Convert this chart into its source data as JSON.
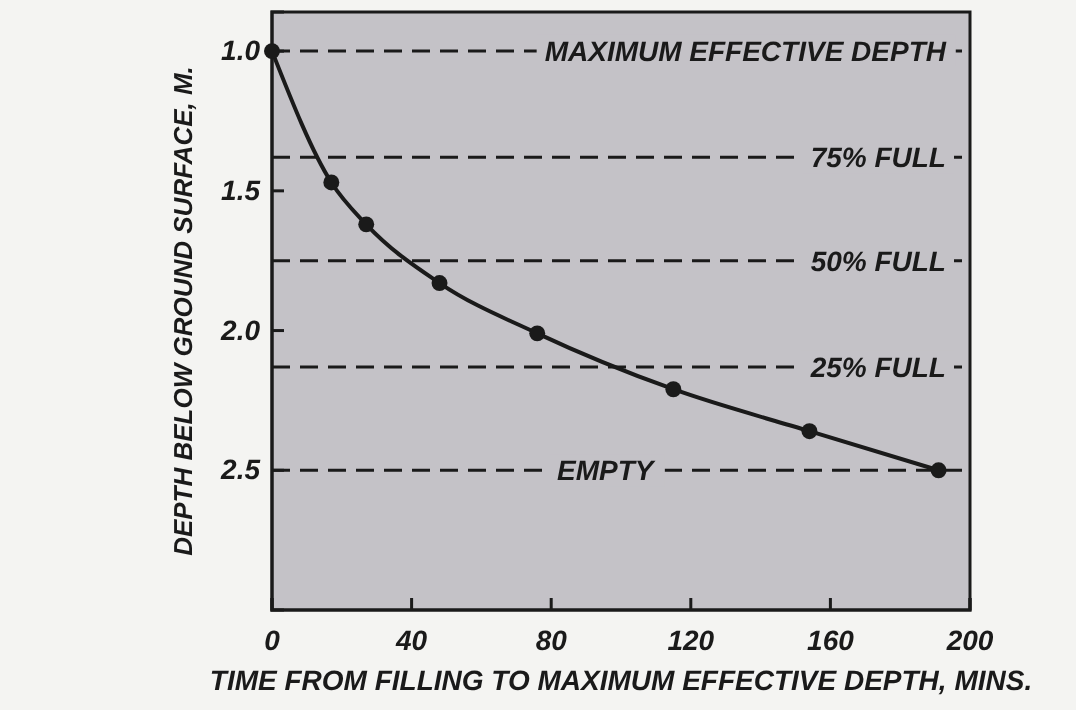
{
  "chart_data": {
    "type": "line",
    "xlabel": "TIME FROM FILLING TO MAXIMUM EFFECTIVE  DEPTH, MINS.",
    "ylabel": "DEPTH BELOW GROUND SURFACE, M.",
    "x": [
      0,
      17,
      27,
      48,
      76,
      115,
      154,
      191
    ],
    "series": [
      {
        "color": "#1a1a1a",
        "values": [
          1.0,
          1.47,
          1.62,
          1.83,
          2.01,
          2.21,
          2.36,
          2.5
        ]
      }
    ],
    "marker": "circle",
    "line_style": "solid",
    "xlim": [
      0,
      200
    ],
    "xticks": [
      0,
      40,
      80,
      120,
      160,
      200
    ],
    "ylim": [
      3.0,
      0.86
    ],
    "yticks": [
      {
        "value": 1.0,
        "label": "1.0"
      },
      {
        "value": 1.5,
        "label": "1.5"
      },
      {
        "value": 2.0,
        "label": "2.0"
      },
      {
        "value": 2.5,
        "label": "2.5"
      }
    ],
    "ref_lines": [
      {
        "axis": "y",
        "value": 1.0,
        "label": "MAXIMUM EFFECTIVE DEPTH",
        "line_style": "dashed",
        "color": "#1a1a1a"
      },
      {
        "axis": "y",
        "value": 1.38,
        "label": "75% FULL",
        "line_style": "dashed",
        "color": "#1a1a1a"
      },
      {
        "axis": "y",
        "value": 1.75,
        "label": "50% FULL",
        "line_style": "dashed",
        "color": "#1a1a1a"
      },
      {
        "axis": "y",
        "value": 2.13,
        "label": "25% FULL",
        "line_style": "dashed",
        "color": "#1a1a1a"
      },
      {
        "axis": "y",
        "value": 2.5,
        "label": "EMPTY",
        "line_style": "dashed",
        "color": "#1a1a1a"
      }
    ]
  }
}
